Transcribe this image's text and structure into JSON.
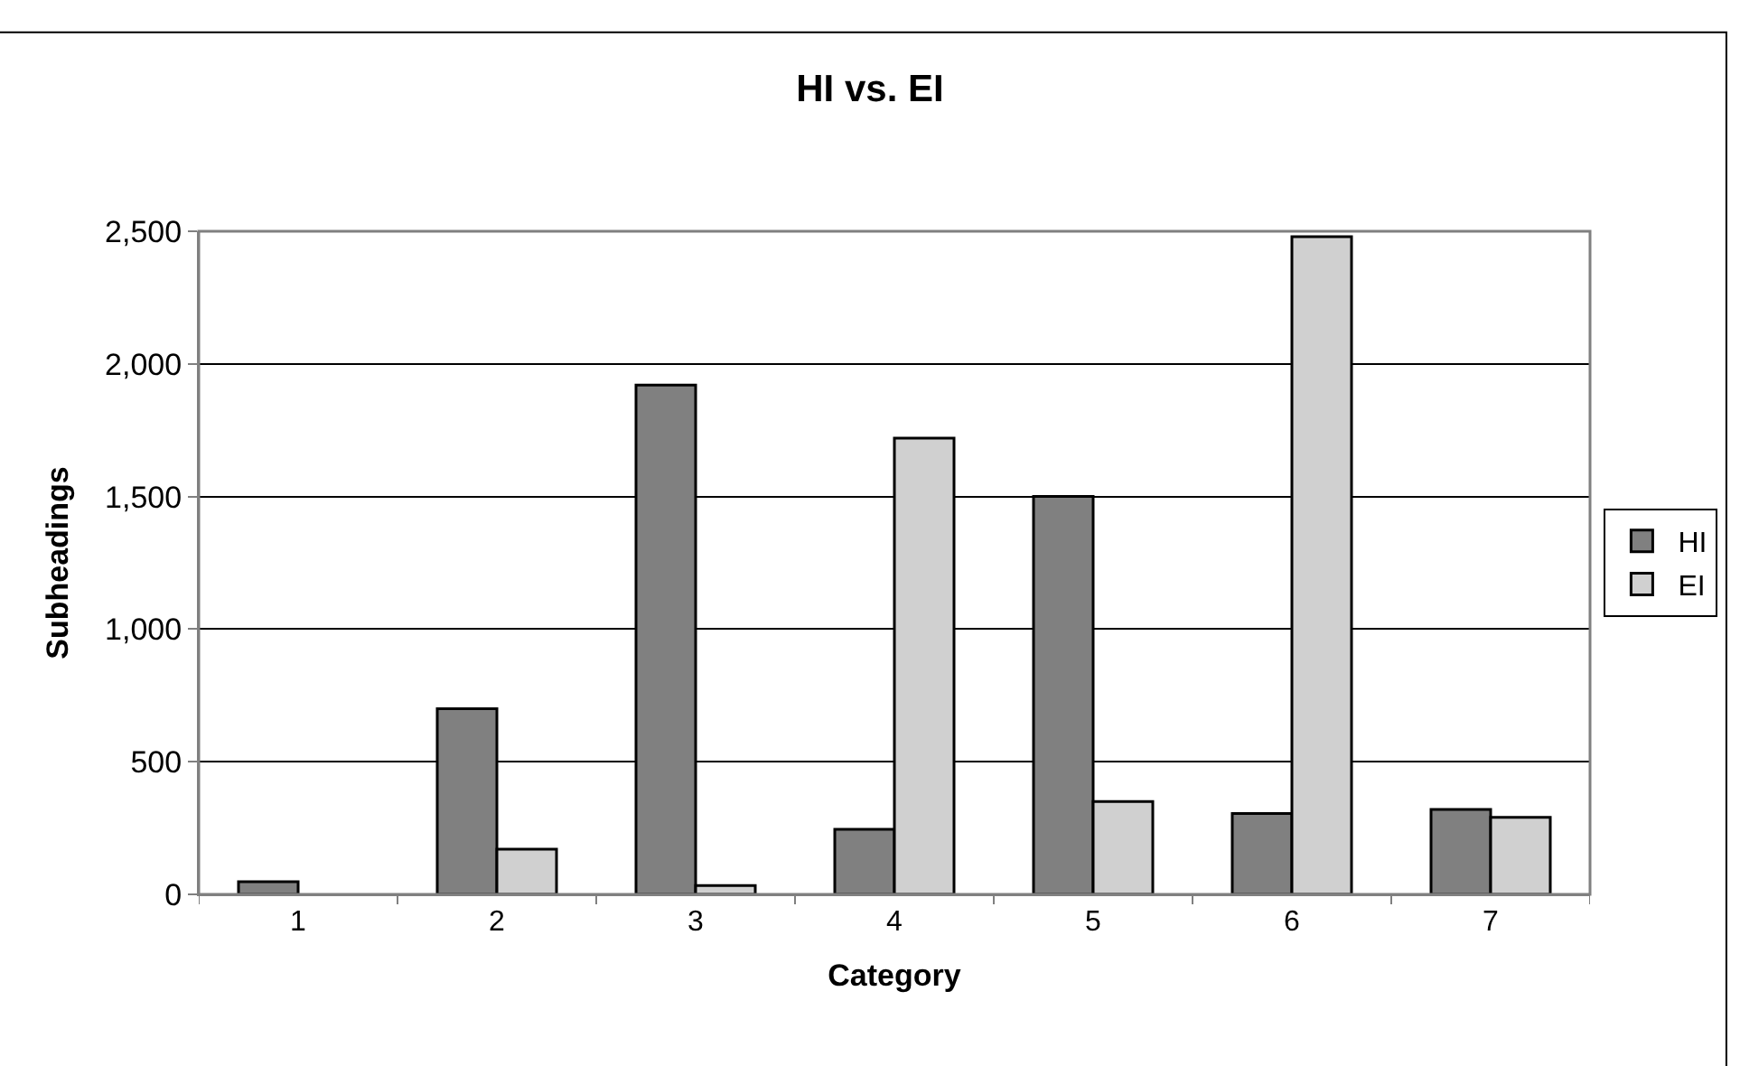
{
  "chart_data": {
    "type": "bar",
    "title": "HI vs. EI",
    "xlabel": "Category",
    "ylabel": "Subheadings",
    "categories": [
      "1",
      "2",
      "3",
      "4",
      "5",
      "6",
      "7"
    ],
    "series": [
      {
        "name": "HI",
        "color": "#808080",
        "values": [
          48,
          700,
          1920,
          245,
          1500,
          305,
          320
        ]
      },
      {
        "name": "EI",
        "color": "#d0d0d0",
        "values": [
          null,
          170,
          33,
          1720,
          350,
          2480,
          290
        ]
      }
    ],
    "ylim": [
      0,
      2500
    ],
    "yticks": [
      {
        "value": 0,
        "label": "0"
      },
      {
        "value": 500,
        "label": "500"
      },
      {
        "value": 1000,
        "label": "1,000"
      },
      {
        "value": 1500,
        "label": "1,500"
      },
      {
        "value": 2000,
        "label": "2,000"
      },
      {
        "value": 2500,
        "label": "2,500"
      }
    ],
    "grid": "y",
    "legend": "right"
  }
}
